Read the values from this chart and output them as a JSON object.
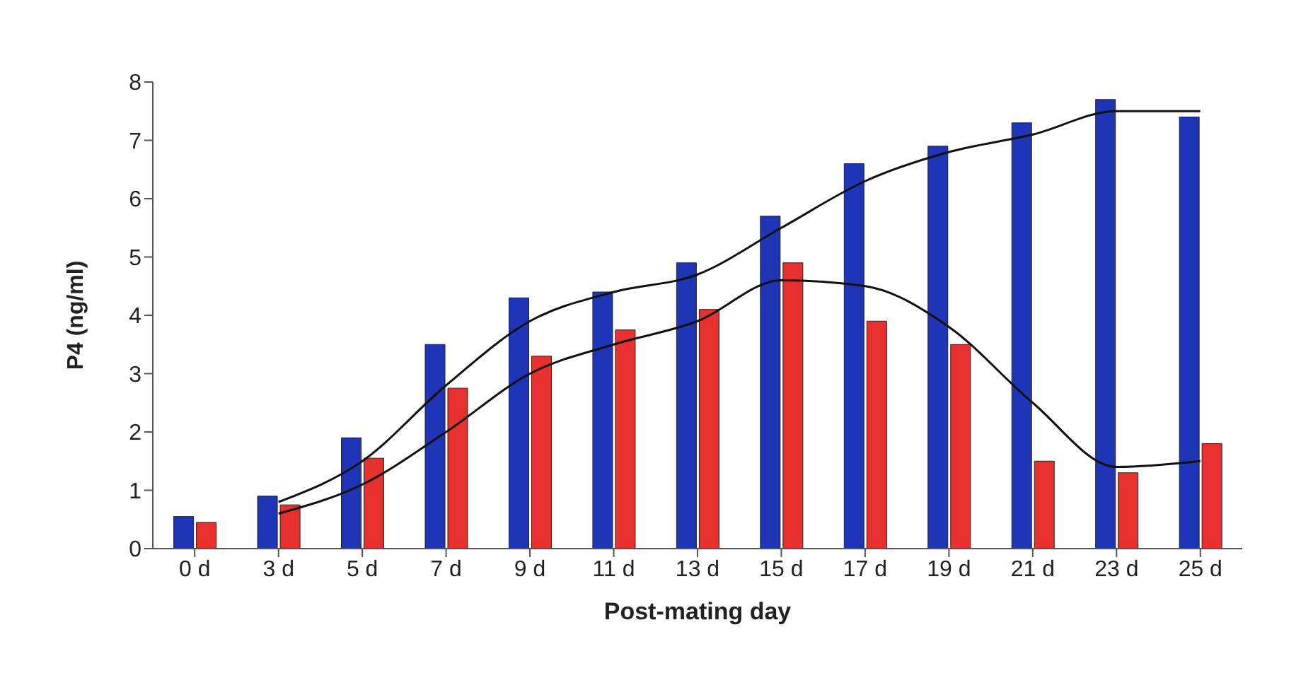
{
  "chart_data": {
    "type": "bar",
    "xlabel": "Post-mating day",
    "ylabel": "P4 (ng/ml)",
    "categories": [
      "0 d",
      "3 d",
      "5 d",
      "7 d",
      "9 d",
      "11 d",
      "13 d",
      "15 d",
      "17 d",
      "19 d",
      "21 d",
      "23 d",
      "25 d"
    ],
    "series": [
      {
        "color": "#1f35b8",
        "values": [
          0.55,
          0.9,
          1.9,
          3.5,
          4.3,
          4.4,
          4.9,
          5.7,
          6.6,
          6.9,
          7.3,
          7.7,
          7.4
        ]
      },
      {
        "color": "#e8302e",
        "values": [
          0.45,
          0.75,
          1.55,
          2.75,
          3.3,
          3.75,
          4.1,
          4.9,
          3.9,
          3.5,
          1.5,
          1.3,
          1.8
        ]
      },
      {
        "type": "line",
        "color": "#111111",
        "values": [
          null,
          0.8,
          1.5,
          2.8,
          3.9,
          4.4,
          4.7,
          5.5,
          6.3,
          6.8,
          7.1,
          7.5,
          7.5
        ]
      },
      {
        "type": "line",
        "color": "#111111",
        "values": [
          null,
          0.6,
          1.1,
          2.0,
          3.0,
          3.5,
          3.9,
          4.6,
          4.5,
          3.8,
          2.5,
          1.4,
          1.5
        ]
      }
    ],
    "ylim": [
      0,
      8
    ],
    "yticks": [
      0,
      1,
      2,
      3,
      4,
      5,
      6,
      7,
      8
    ],
    "grid": false,
    "legend": false
  }
}
